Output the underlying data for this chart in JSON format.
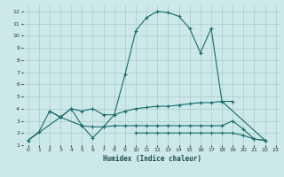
{
  "background_color": "#cce8e8",
  "grid_color": "#aacccc",
  "line_color": "#1a6b6b",
  "xlabel": "Humidex (Indice chaleur)",
  "xlim": [
    -0.5,
    23.5
  ],
  "ylim": [
    1,
    12.5
  ],
  "xticks": [
    0,
    1,
    2,
    3,
    4,
    5,
    6,
    7,
    8,
    9,
    10,
    11,
    12,
    13,
    14,
    15,
    16,
    17,
    18,
    19,
    20,
    21,
    22,
    23
  ],
  "yticks": [
    1,
    2,
    3,
    4,
    5,
    6,
    7,
    8,
    9,
    10,
    11,
    12
  ],
  "series": [
    {
      "x": [
        0,
        1,
        2,
        3,
        4,
        5,
        6,
        7,
        8,
        9,
        10,
        11,
        12,
        13,
        14,
        15,
        16,
        17,
        18,
        22
      ],
      "y": [
        1.4,
        2.1,
        3.8,
        3.3,
        4.0,
        2.6,
        1.6,
        2.5,
        3.5,
        6.8,
        10.4,
        11.5,
        12.0,
        11.9,
        11.6,
        10.6,
        8.6,
        10.6,
        4.6,
        1.4
      ]
    },
    {
      "x": [
        2,
        3,
        4,
        5,
        6,
        7,
        8,
        9,
        10,
        11,
        12,
        13,
        14,
        15,
        16,
        17,
        18,
        19
      ],
      "y": [
        3.8,
        3.3,
        4.0,
        3.8,
        4.0,
        3.5,
        3.5,
        3.8,
        4.0,
        4.1,
        4.2,
        4.2,
        4.3,
        4.4,
        4.5,
        4.5,
        4.6,
        4.6
      ]
    },
    {
      "x": [
        0,
        3,
        5,
        6,
        7,
        8,
        9,
        10,
        11,
        12,
        13,
        14,
        15,
        16,
        17,
        18,
        19,
        20,
        21,
        22
      ],
      "y": [
        1.4,
        3.3,
        2.6,
        2.5,
        2.5,
        2.6,
        2.6,
        2.6,
        2.6,
        2.6,
        2.6,
        2.6,
        2.6,
        2.6,
        2.6,
        2.6,
        3.0,
        2.3,
        1.5,
        1.4
      ]
    },
    {
      "x": [
        10,
        11,
        12,
        13,
        14,
        15,
        16,
        17,
        18,
        19,
        20,
        21,
        22
      ],
      "y": [
        2.0,
        2.0,
        2.0,
        2.0,
        2.0,
        2.0,
        2.0,
        2.0,
        2.0,
        2.0,
        1.8,
        1.5,
        1.4
      ]
    }
  ]
}
